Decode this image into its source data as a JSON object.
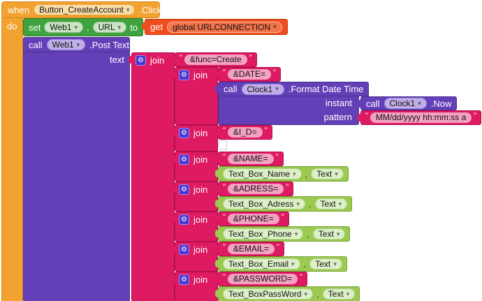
{
  "ui": {
    "quote": "\"",
    "dropdown_arrow": "▾",
    "gear_icon": "⚙",
    "dot": "."
  },
  "colors": {
    "event_block": "#F2A230",
    "setter_block": "#3EA33E",
    "variable_block": "#EF4D1E",
    "method_block": "#6340B8",
    "text_block": "#DE1A62",
    "getter_block": "#9CC94F"
  },
  "when_block": {
    "keyword": "when",
    "component": "Button_CreateAccount",
    "event": ".Click",
    "do_label": "do"
  },
  "set_block": {
    "keyword": "set",
    "component": "Web1",
    "property": "URL",
    "to_label": "to"
  },
  "get_block": {
    "keyword": "get",
    "variable": "global URLCONNECTION"
  },
  "post_block": {
    "keyword": "call",
    "component": "Web1",
    "method": ".Post Text",
    "param_label": "text"
  },
  "outer_join": {
    "label": "join",
    "first_string": "&func=Create"
  },
  "clock_format_block": {
    "keyword": "call",
    "component": "Clock1",
    "method": ".Format Date Time",
    "instant_label": "instant",
    "pattern_label": "pattern",
    "pattern_value": "MM/dd/yyyy hh:mm:ss a"
  },
  "clock_now_block": {
    "keyword": "call",
    "component": "Clock1",
    "method": ".Now"
  },
  "joins": [
    {
      "label": "join",
      "string": "&DATE="
    },
    {
      "label": "join",
      "string": "&I_D="
    },
    {
      "label": "join",
      "string": "&NAME=",
      "component": "Text_Box_Name",
      "property": "Text"
    },
    {
      "label": "join",
      "string": "&ADRESS=",
      "component": "Text_Box_Adress",
      "property": "Text"
    },
    {
      "label": "join",
      "string": "&PHONE=",
      "component": "Text_Box_Phone",
      "property": "Text"
    },
    {
      "label": "join",
      "string": "&EMAIL=",
      "component": "Text_Box_Email",
      "property": "Text"
    },
    {
      "label": "join",
      "string": "&PASSWORD=",
      "component": "Text_BoxPassWord",
      "property": "Text"
    }
  ]
}
